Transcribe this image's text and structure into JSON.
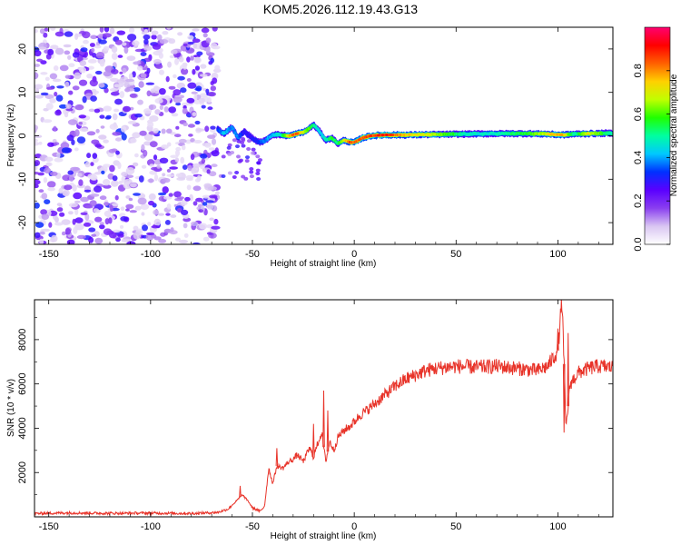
{
  "figure": {
    "title": "KOM5.2026.112.19.43.G13"
  },
  "chart_data": [
    {
      "type": "heatmap",
      "name": "spectrogram",
      "xlabel": "Height of straight line (km)",
      "ylabel": "Frequency (Hz)",
      "xlim": [
        -157,
        127
      ],
      "ylim": [
        -25,
        25
      ],
      "xticks": [
        -150,
        -100,
        -50,
        0,
        50,
        100
      ],
      "yticks": [
        -20,
        -10,
        0,
        10,
        20
      ],
      "colorbar": {
        "label": "Normalized spectral amplitude",
        "range": [
          0,
          1
        ],
        "ticks": [
          "0.0",
          "0.2",
          "0.4",
          "0.6",
          "0.8"
        ],
        "colors": [
          "#ffffff",
          "#d9c6f2",
          "#8a3ff0",
          "#5a00ff",
          "#0030ff",
          "#00c8ff",
          "#00ffa0",
          "#20ff00",
          "#c0ff00",
          "#ffd000",
          "#ff6000",
          "#ff0000",
          "#ff0070"
        ]
      },
      "noise_region_x": [
        -157,
        -67
      ],
      "signal_track": {
        "x": [
          -67,
          -64,
          -60,
          -57,
          -54,
          -50,
          -47,
          -44,
          -40,
          -36,
          -32,
          -28,
          -24,
          -20,
          -17,
          -14,
          -11,
          -8,
          -5,
          -2,
          0,
          4,
          8,
          15,
          25,
          40,
          55,
          70,
          85,
          95,
          102,
          108,
          115,
          127
        ],
        "freq": [
          1.5,
          0.5,
          2,
          -0.5,
          1,
          -0.5,
          -1.5,
          -1.2,
          0.3,
          0.2,
          0,
          0.5,
          1,
          2.5,
          1,
          -1,
          -0.5,
          -1.8,
          -1,
          -1.5,
          -1.5,
          -0.5,
          0,
          0.2,
          0.2,
          0.3,
          0.4,
          0.5,
          0.5,
          0.4,
          0.2,
          0.4,
          0.5,
          0.6
        ],
        "amplitude": [
          0.35,
          0.45,
          0.4,
          0.4,
          0.3,
          0.3,
          0.35,
          0.4,
          0.45,
          0.5,
          0.8,
          0.9,
          0.7,
          0.55,
          0.45,
          0.5,
          0.6,
          0.55,
          0.75,
          0.9,
          0.9,
          0.9,
          0.9,
          0.95,
          0.8,
          0.7,
          0.5,
          0.5,
          0.6,
          0.75,
          0.85,
          0.5,
          0.75,
          0.5
        ]
      }
    },
    {
      "type": "line",
      "name": "snr",
      "xlabel": "Height of straight line (km)",
      "ylabel": "SNR (10 * v/v)",
      "xlim": [
        -157,
        127
      ],
      "ylim": [
        0,
        9800
      ],
      "xticks": [
        -150,
        -100,
        -50,
        0,
        50,
        100
      ],
      "yticks": [
        2000,
        4000,
        6000,
        8000
      ],
      "color": "#e8342a",
      "series": [
        {
          "name": "SNR",
          "x": [
            -157,
            -140,
            -120,
            -100,
            -80,
            -67,
            -62,
            -58,
            -55,
            -52,
            -50,
            -46,
            -44,
            -42,
            -40,
            -38,
            -35,
            -32,
            -30,
            -28,
            -25,
            -22,
            -20,
            -18,
            -16,
            -14,
            -12,
            -10,
            -8,
            -5,
            -2,
            0,
            3,
            6,
            10,
            15,
            20,
            25,
            30,
            35,
            40,
            50,
            60,
            70,
            80,
            90,
            95,
            100,
            102,
            104,
            106,
            110,
            115,
            120,
            127
          ],
          "y": [
            150,
            180,
            160,
            170,
            150,
            200,
            350,
            700,
            1000,
            700,
            400,
            250,
            500,
            2200,
            1500,
            2300,
            2200,
            2500,
            2600,
            2800,
            2500,
            3100,
            2700,
            3300,
            3800,
            2500,
            3400,
            3000,
            3600,
            3900,
            4100,
            4300,
            4600,
            4800,
            5100,
            5500,
            5900,
            6200,
            6400,
            6600,
            6700,
            6800,
            6750,
            6800,
            6700,
            6600,
            6800,
            7500,
            9800,
            4000,
            6000,
            6500,
            6700,
            6800,
            6750
          ]
        }
      ],
      "spikes": [
        {
          "x": -56,
          "y": 1400
        },
        {
          "x": -38,
          "y": 3100
        },
        {
          "x": -20,
          "y": 4200
        },
        {
          "x": -15,
          "y": 5700
        },
        {
          "x": -13,
          "y": 4800
        },
        {
          "x": 100,
          "y": 8500
        },
        {
          "x": 102,
          "y": 9800
        },
        {
          "x": 103,
          "y": 3800
        },
        {
          "x": 105,
          "y": 8300
        }
      ]
    }
  ]
}
